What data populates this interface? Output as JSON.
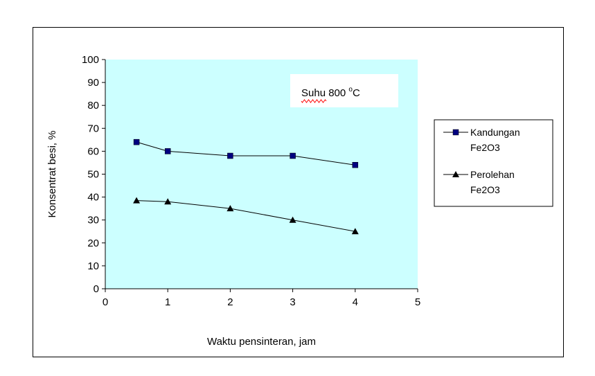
{
  "chart_data": {
    "type": "line",
    "annotation": {
      "text_main": "Suhu 800 ",
      "text_sup": "o",
      "text_unit": "C"
    },
    "xlabel": "Waktu pensinteran, jam",
    "ylabel": "Konsentrat besi, %",
    "xlim": [
      0,
      5
    ],
    "ylim": [
      0,
      100
    ],
    "x_ticks": [
      0,
      1,
      2,
      3,
      4,
      5
    ],
    "y_ticks": [
      0,
      10,
      20,
      30,
      40,
      50,
      60,
      70,
      80,
      90,
      100
    ],
    "plot_background": "#ccffff",
    "grid": false,
    "legend_position": "right",
    "series": [
      {
        "name_line1": "Kandungan",
        "name_line2": "Fe2O3",
        "marker": "square",
        "marker_color": "#000080",
        "line_color": "#000000",
        "x": [
          0.5,
          1,
          2,
          3,
          4
        ],
        "y": [
          64,
          60,
          58,
          58,
          54
        ]
      },
      {
        "name_line1": "Perolehan",
        "name_line2": "Fe2O3",
        "marker": "triangle",
        "marker_color": "#000000",
        "line_color": "#000000",
        "x": [
          0.5,
          1,
          2,
          3,
          4
        ],
        "y": [
          38.5,
          38,
          35,
          30,
          25
        ]
      }
    ]
  }
}
